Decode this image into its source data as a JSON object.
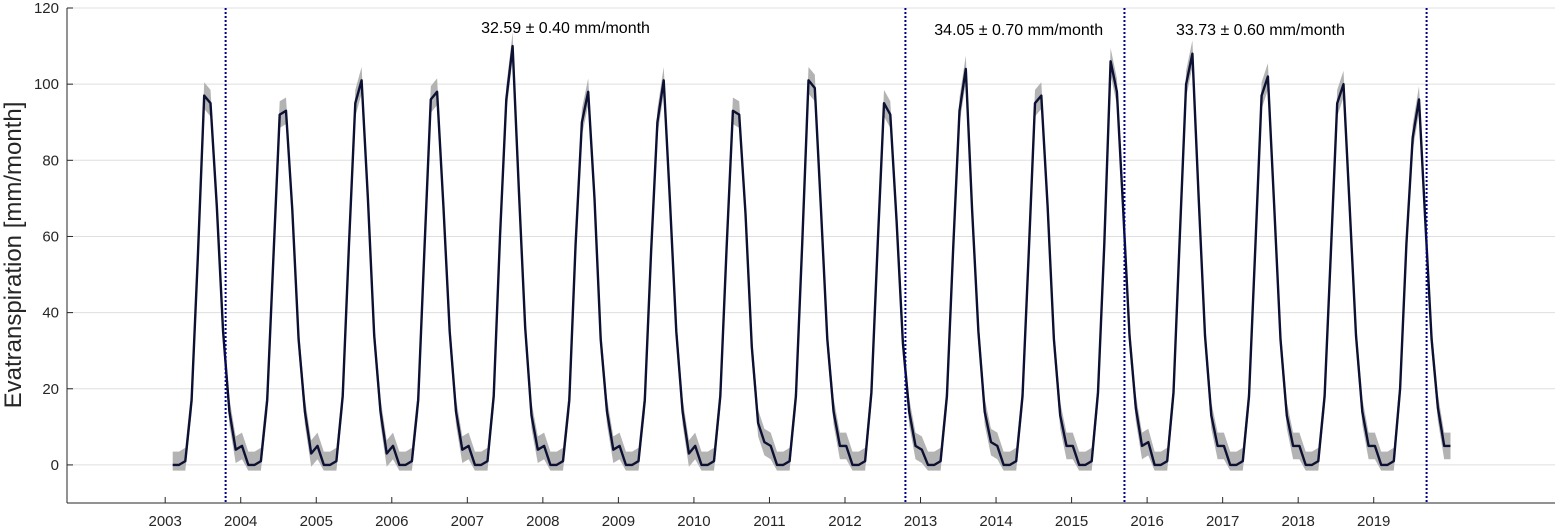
{
  "chart_data": {
    "type": "line",
    "ylabel": "Evatranspiration [mm/month]",
    "xlabel": "",
    "title": "",
    "xlim": [
      2001.7,
      2021.4
    ],
    "ylim": [
      -10,
      120
    ],
    "yticks": [
      0,
      20,
      40,
      60,
      80,
      100,
      120
    ],
    "xticks": [
      2003,
      2004,
      2005,
      2006,
      2007,
      2008,
      2009,
      2010,
      2011,
      2012,
      2013,
      2014,
      2015,
      2016,
      2017,
      2018,
      2019
    ],
    "grid": true,
    "colors": {
      "line": "#0c1033",
      "band": "#b3b3b3",
      "breakline": "#00008b",
      "grid": "#dfdfdf",
      "axis": "#262626"
    },
    "series": [
      {
        "start": 2003.1,
        "step_years": 0.08333,
        "values": [
          0,
          0,
          1,
          17,
          55,
          97,
          95,
          68,
          35,
          14,
          4,
          5,
          0,
          0,
          1,
          17,
          55,
          92,
          93,
          67,
          33,
          14,
          3,
          5,
          0,
          0,
          1,
          18,
          58,
          95,
          101,
          70,
          34,
          14,
          3,
          5,
          0,
          0,
          1,
          17,
          57,
          96,
          98,
          68,
          35,
          14,
          4,
          5,
          0,
          0,
          1,
          18,
          60,
          96,
          110,
          72,
          36,
          13,
          4,
          5,
          0,
          0,
          1,
          17,
          58,
          90,
          98,
          70,
          33,
          14,
          4,
          5,
          0,
          0,
          1,
          17,
          56,
          90,
          101,
          69,
          35,
          14,
          3,
          5,
          0,
          0,
          1,
          18,
          57,
          93,
          92,
          66,
          31,
          11,
          6,
          5,
          0,
          0,
          1,
          18,
          58,
          101,
          99,
          67,
          33,
          14,
          5,
          5,
          0,
          0,
          1,
          19,
          58,
          95,
          92,
          64,
          32,
          14,
          5,
          4,
          0,
          0,
          1,
          18,
          57,
          93,
          104,
          67,
          35,
          14,
          6,
          5,
          0,
          0,
          1,
          18,
          56,
          95,
          97,
          68,
          33,
          13,
          5,
          5,
          0,
          0,
          1,
          19,
          58,
          106,
          98,
          67,
          34,
          15,
          5,
          6,
          0,
          0,
          1,
          19,
          60,
          100,
          108,
          70,
          34,
          13,
          5,
          5,
          0,
          0,
          1,
          18,
          57,
          97,
          102,
          68,
          33,
          13,
          5,
          5,
          0,
          0,
          1,
          18,
          56,
          95,
          100,
          67,
          34,
          14,
          5,
          5,
          0,
          0,
          1,
          20,
          58,
          86,
          96,
          64,
          33,
          15,
          5,
          5
        ]
      }
    ],
    "uncertainty_band": 3.5,
    "breakpoints": [
      2003.8,
      2012.8,
      2015.7,
      2019.7
    ],
    "annotations": [
      {
        "text": "32.59 ± 0.40 mm/month",
        "x": 2008.3,
        "y": 115
      },
      {
        "text": "34.05 ± 0.70 mm/month",
        "x": 2014.3,
        "y": 114.5
      },
      {
        "text": "33.73 ± 0.60 mm/month",
        "x": 2017.5,
        "y": 114.5
      }
    ]
  }
}
